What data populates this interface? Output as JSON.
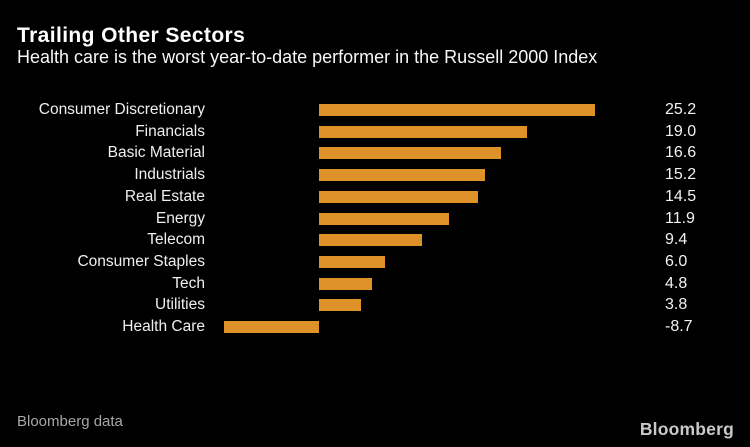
{
  "header": {
    "title": "Trailing Other Sectors",
    "subtitle": "Health care is the worst year-to-date performer in the Russell 2000 Index"
  },
  "chart_data": {
    "type": "bar",
    "orientation": "horizontal",
    "title": "Trailing Other Sectors",
    "subtitle": "Health care is the worst year-to-date performer in the Russell 2000 Index",
    "categories": [
      "Consumer Discretionary",
      "Financials",
      "Basic Material",
      "Industrials",
      "Real Estate",
      "Energy",
      "Telecom",
      "Consumer Staples",
      "Tech",
      "Utilities",
      "Health Care"
    ],
    "values": [
      25.2,
      19.0,
      16.6,
      15.2,
      14.5,
      11.9,
      9.4,
      6.0,
      4.8,
      3.8,
      -8.7
    ],
    "value_labels": [
      "25.2",
      "19.0",
      "16.6",
      "15.2",
      "14.5",
      "11.9",
      "9.4",
      "6.0",
      "4.8",
      "3.8",
      "-8.7"
    ],
    "xlabel": "",
    "ylabel": "",
    "xlim": [
      -10.4,
      31.1
    ],
    "grid": false,
    "legend": false,
    "data_labels_position": "right-column",
    "bar_color": "#DF9129"
  },
  "footer": {
    "source": "Bloomberg data",
    "brand": "Bloomberg"
  },
  "colors": {
    "background": "#000000",
    "bar": "#DF9129",
    "title_text": "#FFFFFF",
    "label_text": "#EFEFEF",
    "source_text": "#A7A7A7",
    "brand_text": "#C9C9C9"
  }
}
